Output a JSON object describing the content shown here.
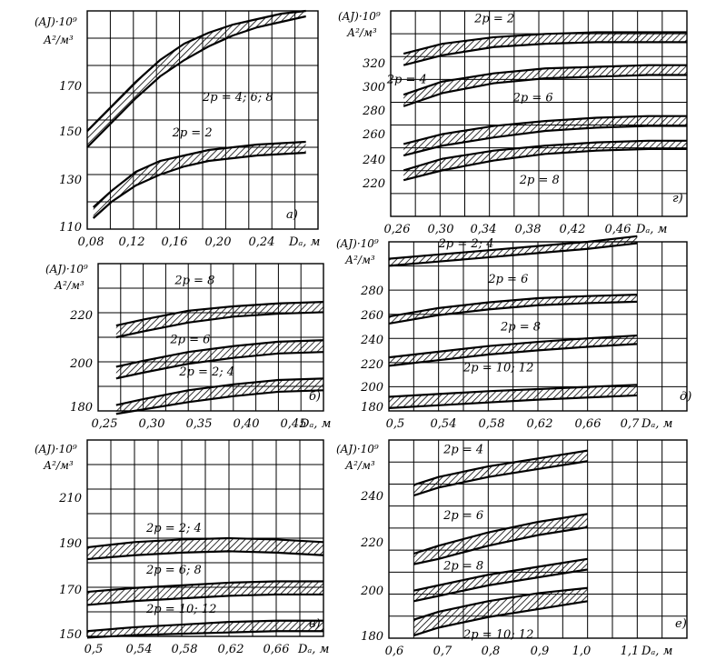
{
  "chart_data": [
    {
      "id": "a",
      "type": "line",
      "panel_tag": "а)",
      "ylabel_line1": "(AJ)·10⁹",
      "ylabel_line2": "А²/м³",
      "xlabel": "Dₐ, м",
      "x_ticks": [
        "0,08",
        "0,12",
        "0,16",
        "0,20",
        "0,24"
      ],
      "y_ticks": [
        "110",
        "130",
        "150",
        "170"
      ],
      "xlim": [
        0.08,
        0.27
      ],
      "ylim": [
        110,
        190
      ],
      "series": [
        {
          "name": "2p = 4; 6; 8",
          "x": [
            0.08,
            0.1,
            0.12,
            0.14,
            0.16,
            0.18,
            0.2,
            0.22,
            0.24,
            0.26
          ],
          "upper": [
            146,
            155,
            164,
            172,
            178,
            182,
            185,
            187,
            189,
            190
          ],
          "lower": [
            140,
            149,
            158,
            166,
            172,
            177,
            181,
            184,
            186,
            188
          ]
        },
        {
          "name": "2p = 2",
          "x": [
            0.085,
            0.1,
            0.12,
            0.14,
            0.16,
            0.18,
            0.2,
            0.22,
            0.24,
            0.26
          ],
          "upper": [
            118,
            124,
            131,
            135,
            137,
            139,
            140,
            141,
            141.5,
            142
          ],
          "lower": [
            114,
            120,
            126,
            130,
            133,
            135,
            136,
            137,
            137.5,
            138
          ]
        }
      ]
    },
    {
      "id": "g",
      "type": "line",
      "panel_tag": "г)",
      "ylabel_line1": "(AJ)·10⁹",
      "ylabel_line2": "А²/м³",
      "xlabel": "Dₐ, м",
      "x_ticks": [
        "0,26",
        "0,30",
        "0,34",
        "0,38",
        "0,42",
        "0,46"
      ],
      "y_ticks": [
        "220",
        "240",
        "260",
        "280",
        "300",
        "320"
      ],
      "xlim": [
        0.26,
        0.49
      ],
      "ylim": [
        210,
        335
      ],
      "series": [
        {
          "name": "2p = 2",
          "x": [
            0.27,
            0.3,
            0.34,
            0.38,
            0.42,
            0.46,
            0.49
          ],
          "upper": [
            309,
            315,
            319,
            321,
            322,
            322,
            322
          ],
          "lower": [
            302,
            308,
            313,
            315,
            316,
            316,
            316
          ]
        },
        {
          "name": "2p = 4",
          "x": [
            0.27,
            0.3,
            0.34,
            0.38,
            0.42,
            0.46,
            0.49
          ],
          "upper": [
            284,
            292,
            297,
            300,
            301,
            302,
            302
          ],
          "lower": [
            277,
            285,
            291,
            294,
            295,
            296,
            296
          ]
        },
        {
          "name": "2p = 6",
          "x": [
            0.27,
            0.3,
            0.34,
            0.38,
            0.42,
            0.46,
            0.49
          ],
          "upper": [
            254,
            260,
            265,
            268,
            270,
            271,
            271
          ],
          "lower": [
            247,
            253,
            258,
            262,
            264,
            265,
            265
          ]
        },
        {
          "name": "2p = 8",
          "x": [
            0.27,
            0.3,
            0.34,
            0.38,
            0.42,
            0.46,
            0.49
          ],
          "upper": [
            238,
            245,
            250,
            253,
            255,
            256,
            256
          ],
          "lower": [
            232,
            238,
            244,
            248,
            250,
            251,
            251
          ]
        }
      ]
    },
    {
      "id": "b",
      "type": "line",
      "panel_tag": "б)",
      "ylabel_line1": "(AJ)·10⁹",
      "ylabel_line2": "А²/м³",
      "xlabel": "Dₐ, м",
      "x_ticks": [
        "0,25",
        "0,30",
        "0,35",
        "0,40",
        "0,45"
      ],
      "y_ticks": [
        "180",
        "200",
        "220"
      ],
      "xlim": [
        0.25,
        0.5
      ],
      "ylim": [
        180,
        230
      ],
      "series": [
        {
          "name": "2p = 8",
          "x": [
            0.27,
            0.3,
            0.35,
            0.4,
            0.45,
            0.5
          ],
          "upper": [
            209,
            211,
            214,
            215.5,
            216.5,
            217
          ],
          "lower": [
            205,
            207,
            210,
            212,
            213,
            213.5
          ]
        },
        {
          "name": "2p = 6",
          "x": [
            0.27,
            0.3,
            0.35,
            0.4,
            0.45,
            0.5
          ],
          "upper": [
            195,
            197,
            200,
            202,
            203.5,
            204
          ],
          "lower": [
            191,
            193,
            196,
            198,
            199.5,
            200
          ]
        },
        {
          "name": "2p = 2; 4",
          "x": [
            0.27,
            0.3,
            0.35,
            0.4,
            0.45,
            0.5
          ],
          "upper": [
            182,
            184,
            187,
            189,
            190.5,
            191
          ],
          "lower": [
            179,
            180.5,
            183,
            185,
            186.5,
            187
          ]
        }
      ]
    },
    {
      "id": "d",
      "type": "line",
      "panel_tag": "д)",
      "ylabel_line1": "(AJ)·10⁹",
      "ylabel_line2": "А²/м³",
      "xlabel": "Dₐ, м",
      "x_ticks": [
        "0,5",
        "0,54",
        "0,58",
        "0,62",
        "0,66",
        "0,7"
      ],
      "y_ticks": [
        "180",
        "200",
        "220",
        "240",
        "260",
        "280"
      ],
      "xlim": [
        0.5,
        0.74
      ],
      "ylim": [
        180,
        300
      ],
      "series": [
        {
          "name": "2p = 2; 4",
          "x": [
            0.5,
            0.54,
            0.58,
            0.62,
            0.66,
            0.7
          ],
          "upper": [
            288,
            291,
            294,
            297,
            300,
            304
          ],
          "lower": [
            283,
            286,
            289,
            292,
            295,
            299
          ]
        },
        {
          "name": "2p = 6",
          "x": [
            0.5,
            0.54,
            0.58,
            0.62,
            0.66,
            0.7
          ],
          "upper": [
            247,
            253,
            257,
            260,
            261.5,
            262.5
          ],
          "lower": [
            242,
            248,
            252,
            255,
            256.5,
            257.5
          ]
        },
        {
          "name": "2p = 8",
          "x": [
            0.5,
            0.54,
            0.58,
            0.62,
            0.66,
            0.7
          ],
          "upper": [
            218,
            222,
            226,
            229,
            231.5,
            233.5
          ],
          "lower": [
            212,
            216,
            220,
            223,
            225.5,
            227.5
          ]
        },
        {
          "name": "2p = 10; 12",
          "x": [
            0.5,
            0.54,
            0.58,
            0.62,
            0.66,
            0.7
          ],
          "upper": [
            190,
            192,
            194,
            195.5,
            197,
            198.5
          ],
          "lower": [
            182,
            184,
            186,
            188,
            189.5,
            191
          ]
        }
      ]
    },
    {
      "id": "v",
      "type": "line",
      "panel_tag": "в)",
      "ylabel_line1": "(AJ)·10⁹",
      "ylabel_line2": "А²/м³",
      "xlabel": "Dₐ, м",
      "x_ticks": [
        "0,5",
        "0,54",
        "0,58",
        "0,62",
        "0,66"
      ],
      "y_ticks": [
        "150",
        "170",
        "190",
        "210"
      ],
      "xlim": [
        0.5,
        0.7
      ],
      "ylim": [
        150,
        225
      ],
      "series": [
        {
          "name": "2p = 2; 4",
          "x": [
            0.5,
            0.54,
            0.58,
            0.62,
            0.66,
            0.7
          ],
          "upper": [
            184,
            186,
            187,
            187.5,
            187,
            186
          ],
          "lower": [
            179.5,
            181,
            182,
            182.5,
            182,
            181
          ]
        },
        {
          "name": "2p = 6; 8",
          "x": [
            0.5,
            0.54,
            0.58,
            0.62,
            0.66,
            0.7
          ],
          "upper": [
            167,
            168.5,
            169.5,
            170.5,
            171,
            171
          ],
          "lower": [
            162,
            163.5,
            164.5,
            165.5,
            166,
            166
          ]
        },
        {
          "name": "2p = 10; 12",
          "x": [
            0.5,
            0.54,
            0.58,
            0.62,
            0.66,
            0.7
          ],
          "upper": [
            152,
            153.5,
            154.5,
            155.5,
            156,
            156
          ],
          "lower": [
            149.5,
            150.5,
            151,
            151.5,
            152,
            152
          ]
        }
      ]
    },
    {
      "id": "e",
      "type": "line",
      "panel_tag": "е)",
      "ylabel_line1": "(AJ)·10⁹",
      "ylabel_line2": "А²/м³",
      "xlabel": "Dₐ, м",
      "x_ticks": [
        "0,6",
        "0,7",
        "0,8",
        "0,9",
        "1,0",
        "1,1"
      ],
      "y_ticks": [
        "180",
        "200",
        "220",
        "240"
      ],
      "xlim": [
        0.6,
        1.2
      ],
      "ylim": [
        180,
        255
      ],
      "series": [
        {
          "name": "2p = 4",
          "x": [
            0.65,
            0.7,
            0.8,
            0.9,
            1.0
          ],
          "upper": [
            238,
            241,
            245,
            248,
            251
          ],
          "lower": [
            234,
            237,
            241,
            244,
            247
          ]
        },
        {
          "name": "2p = 6",
          "x": [
            0.65,
            0.7,
            0.8,
            0.9,
            1.0
          ],
          "upper": [
            212,
            215,
            220,
            224,
            227
          ],
          "lower": [
            208,
            210,
            215,
            219,
            222
          ]
        },
        {
          "name": "2p = 8",
          "x": [
            0.65,
            0.7,
            0.8,
            0.9,
            1.0
          ],
          "upper": [
            198,
            200,
            204,
            207,
            210
          ],
          "lower": [
            194,
            196,
            200,
            203,
            206
          ]
        },
        {
          "name": "2p = 10; 12",
          "x": [
            0.65,
            0.7,
            0.8,
            0.9,
            1.0
          ],
          "upper": [
            187,
            190,
            194,
            197,
            199
          ],
          "lower": [
            181,
            184,
            188,
            191,
            194
          ]
        }
      ]
    }
  ],
  "series_label_positions": {
    "a": [
      {
        "x": 0.175,
        "y": 157
      },
      {
        "x": 0.15,
        "y": 144
      }
    ],
    "g": [
      {
        "x": 0.325,
        "y": 328
      },
      {
        "x": 0.257,
        "y": 291
      },
      {
        "x": 0.355,
        "y": 280
      },
      {
        "x": 0.36,
        "y": 230
      }
    ],
    "b": [
      {
        "x": 0.335,
        "y": 223
      },
      {
        "x": 0.33,
        "y": 203
      },
      {
        "x": 0.34,
        "y": 192
      }
    ],
    "d": [
      {
        "x": 0.54,
        "y": 296
      },
      {
        "x": 0.58,
        "y": 271
      },
      {
        "x": 0.59,
        "y": 237
      },
      {
        "x": 0.56,
        "y": 208
      }
    ],
    "v": [
      {
        "x": 0.55,
        "y": 190
      },
      {
        "x": 0.55,
        "y": 174
      },
      {
        "x": 0.55,
        "y": 159
      }
    ],
    "e": [
      {
        "x": 0.71,
        "y": 250
      },
      {
        "x": 0.71,
        "y": 225
      },
      {
        "x": 0.71,
        "y": 206
      },
      {
        "x": 0.75,
        "y": 180
      }
    ]
  },
  "colors": {
    "ink": "#000000",
    "background": "#ffffff"
  }
}
